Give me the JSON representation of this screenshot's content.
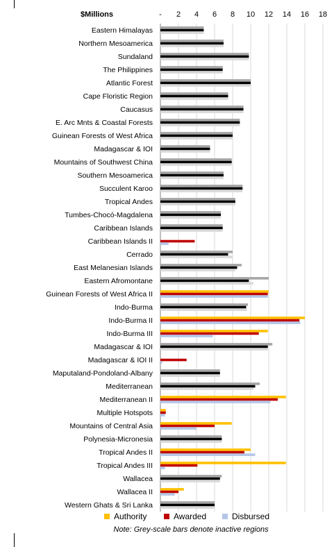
{
  "chart_data": {
    "type": "bar",
    "orientation": "horizontal",
    "unit_label": "$Millions",
    "x_ticks": [
      "-",
      "2",
      "4",
      "6",
      "8",
      "10",
      "12",
      "14",
      "16",
      "18"
    ],
    "xlim": [
      0,
      18
    ],
    "grid": true,
    "legend_position": "bottom",
    "note": "Note:  Grey-scale bars denote inactive regions",
    "legend": [
      {
        "name": "Authority",
        "color": "#FFC000"
      },
      {
        "name": "Awarded",
        "color": "#C00000"
      },
      {
        "name": "Disbursed",
        "color": "#B4C6E7"
      }
    ],
    "inactive_colors": {
      "authority": "#A6A6A6",
      "awarded": "#000000",
      "disbursed": "#D9D9D9"
    },
    "categories": [
      {
        "label": "Eastern Himalayas",
        "active": false,
        "authority": 4.8,
        "awarded": 4.8,
        "disbursed": 4.8
      },
      {
        "label": "Northern Mesoamerica",
        "active": false,
        "authority": 7.0,
        "awarded": 7.0,
        "disbursed": 7.0
      },
      {
        "label": "Sundaland",
        "active": false,
        "authority": 9.8,
        "awarded": 9.8,
        "disbursed": 9.8
      },
      {
        "label": "The Philippines",
        "active": false,
        "authority": 6.9,
        "awarded": 6.9,
        "disbursed": 6.9
      },
      {
        "label": "Atlantic Forest",
        "active": false,
        "authority": 10.0,
        "awarded": 10.0,
        "disbursed": 10.0
      },
      {
        "label": "Cape Floristic Region",
        "active": false,
        "authority": 7.5,
        "awarded": 7.5,
        "disbursed": 7.5
      },
      {
        "label": "Caucasus",
        "active": false,
        "authority": 9.2,
        "awarded": 9.2,
        "disbursed": 9.2
      },
      {
        "label": "E. Arc Mnts & Coastal Forests",
        "active": false,
        "authority": 8.8,
        "awarded": 8.8,
        "disbursed": 8.8
      },
      {
        "label": "Guinean Forests of West Africa",
        "active": false,
        "authority": 8.0,
        "awarded": 8.0,
        "disbursed": 8.0
      },
      {
        "label": "Madagascar & IOI",
        "active": false,
        "authority": 5.5,
        "awarded": 5.5,
        "disbursed": 5.5
      },
      {
        "label": "Mountains of Southwest China",
        "active": false,
        "authority": 7.9,
        "awarded": 7.9,
        "disbursed": 7.9
      },
      {
        "label": "Southern Mesoamerica",
        "active": false,
        "authority": 7.0,
        "awarded": 7.0,
        "disbursed": 7.0
      },
      {
        "label": "Succulent Karoo",
        "active": false,
        "authority": 9.1,
        "awarded": 9.1,
        "disbursed": 9.1
      },
      {
        "label": "Tropical Andes",
        "active": false,
        "authority": 8.3,
        "awarded": 8.3,
        "disbursed": 8.3
      },
      {
        "label": "Tumbes-Chocó-Magdalena",
        "active": false,
        "authority": 6.7,
        "awarded": 6.7,
        "disbursed": 6.7
      },
      {
        "label": "Caribbean Islands",
        "active": false,
        "authority": 6.9,
        "awarded": 6.9,
        "disbursed": 6.9
      },
      {
        "label": "Caribbean Islands II",
        "active": true,
        "authority": 0,
        "awarded": 3.8,
        "disbursed": 0.9
      },
      {
        "label": "Cerrado",
        "active": false,
        "authority": 8.0,
        "awarded": 7.5,
        "disbursed": 8.0
      },
      {
        "label": "East Melanesian Islands",
        "active": false,
        "authority": 9.0,
        "awarded": 8.5,
        "disbursed": 8.3
      },
      {
        "label": "Eastern Afromontane",
        "active": false,
        "authority": 12.0,
        "awarded": 9.8,
        "disbursed": 10.3
      },
      {
        "label": "Guinean Forests of West Africa II",
        "active": true,
        "authority": 12.0,
        "awarded": 11.9,
        "disbursed": 11.9
      },
      {
        "label": "Indo-Burma",
        "active": false,
        "authority": 9.7,
        "awarded": 9.5,
        "disbursed": 9.6
      },
      {
        "label": "Indo-Burma II",
        "active": true,
        "authority": 16.0,
        "awarded": 15.4,
        "disbursed": 15.5
      },
      {
        "label": "Indo-Burma III",
        "active": true,
        "authority": 11.9,
        "awarded": 10.9,
        "disbursed": 5.8
      },
      {
        "label": "Madagascar & IOI",
        "active": false,
        "authority": 12.4,
        "awarded": 11.9,
        "disbursed": 11.9
      },
      {
        "label": "Madagascar & IOI II",
        "active": true,
        "authority": 0,
        "awarded": 2.9,
        "disbursed": 0.2
      },
      {
        "label": "Maputaland-Pondoland-Albany",
        "active": false,
        "authority": 6.6,
        "awarded": 6.6,
        "disbursed": 6.6
      },
      {
        "label": "Mediterranean",
        "active": false,
        "authority": 11.0,
        "awarded": 10.5,
        "disbursed": 10.3
      },
      {
        "label": "Mediterranean II",
        "active": true,
        "authority": 13.9,
        "awarded": 13.0,
        "disbursed": 12.2
      },
      {
        "label": "Multiple Hotspots",
        "active": true,
        "authority": 0.6,
        "awarded": 0.6,
        "disbursed": 0.5
      },
      {
        "label": "Mountains of Central Asia",
        "active": true,
        "authority": 7.9,
        "awarded": 6.0,
        "disbursed": 4.0
      },
      {
        "label": "Polynesia-Micronesia",
        "active": false,
        "authority": 6.8,
        "awarded": 6.8,
        "disbursed": 6.8
      },
      {
        "label": "Tropical Andes II",
        "active": true,
        "authority": 10.0,
        "awarded": 9.3,
        "disbursed": 10.5
      },
      {
        "label": "Tropical Andes III",
        "active": true,
        "authority": 13.9,
        "awarded": 4.1,
        "disbursed": 0.5
      },
      {
        "label": "Wallacea",
        "active": false,
        "authority": 6.8,
        "awarded": 6.6,
        "disbursed": 6.6
      },
      {
        "label": "Wallacea II",
        "active": true,
        "authority": 2.6,
        "awarded": 2.0,
        "disbursed": 1.6
      },
      {
        "label": "Western Ghats & Sri Lanka",
        "active": false,
        "authority": 6.0,
        "awarded": 6.0,
        "disbursed": 6.0
      }
    ]
  }
}
